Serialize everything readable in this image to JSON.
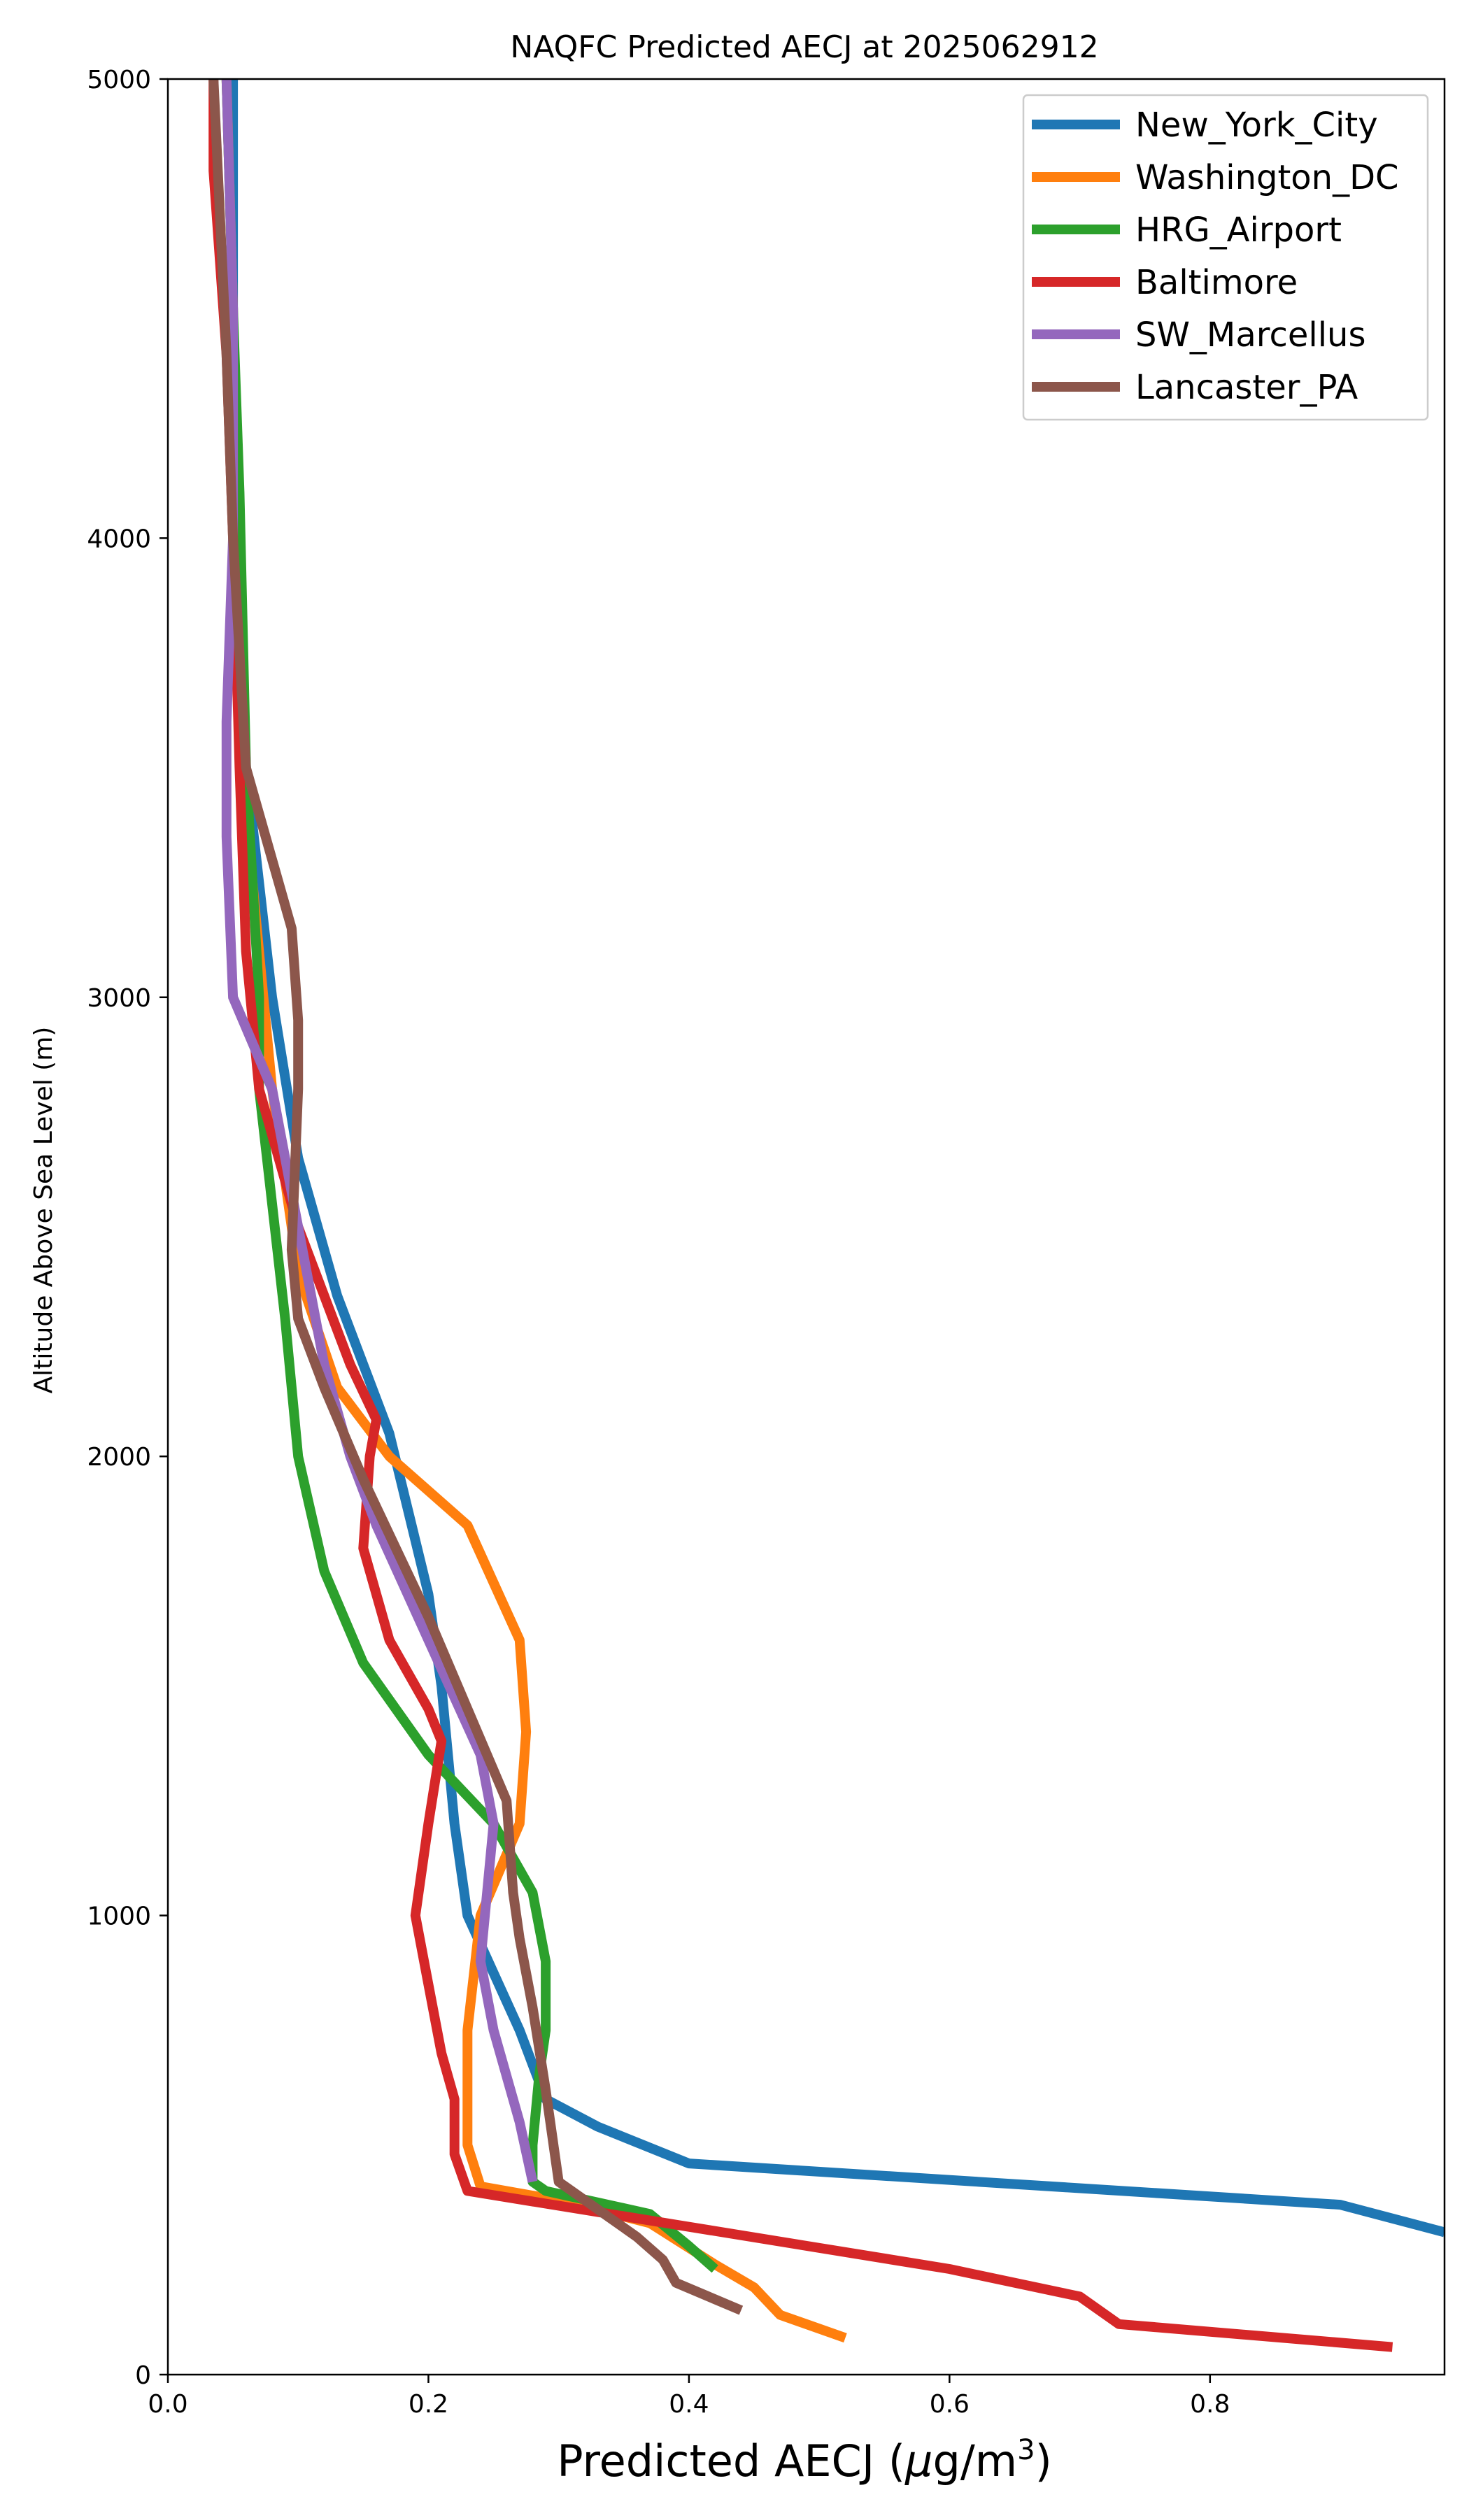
{
  "chart_data": {
    "type": "line",
    "title": "NAQFC Predicted AECJ at 2025062912",
    "xlabel_main": "Predicted AECJ (",
    "xlabel_mu": "μ",
    "xlabel_unit": "g/m",
    "xlabel_sup": "3",
    "xlabel_close": ")",
    "ylabel": "Altitude Above Sea Level (m)",
    "xlim": [
      0.0,
      0.98
    ],
    "ylim": [
      0,
      5000
    ],
    "xticks": [
      0.0,
      0.2,
      0.4,
      0.6,
      0.8
    ],
    "xtick_labels": [
      "0.0",
      "0.2",
      "0.4",
      "0.6",
      "0.8"
    ],
    "yticks": [
      0,
      1000,
      2000,
      3000,
      4000,
      5000
    ],
    "ytick_labels": [
      "0",
      "1000",
      "2000",
      "3000",
      "4000",
      "5000"
    ],
    "legend_position": "top-right",
    "series": [
      {
        "name": "New_York_City",
        "color": "#1f77b4",
        "x": [
          0.05,
          0.05,
          0.05,
          0.06,
          0.08,
          0.1,
          0.13,
          0.17,
          0.2,
          0.21,
          0.22,
          0.23,
          0.27,
          0.29,
          0.33,
          0.4,
          0.9,
          0.98
        ],
        "y": [
          5000,
          4800,
          4200,
          3500,
          3000,
          2650,
          2350,
          2050,
          1700,
          1500,
          1200,
          1000,
          750,
          600,
          540,
          460,
          370,
          310
        ]
      },
      {
        "name": "Washington_DC",
        "color": "#ff7f0e",
        "x": [
          0.045,
          0.05,
          0.05,
          0.06,
          0.08,
          0.09,
          0.1,
          0.13,
          0.17,
          0.23,
          0.27,
          0.275,
          0.27,
          0.24,
          0.23,
          0.23,
          0.24,
          0.3,
          0.37,
          0.42,
          0.45,
          0.47,
          0.52
        ],
        "y": [
          5000,
          4500,
          4000,
          3400,
          2800,
          2600,
          2400,
          2150,
          2000,
          1850,
          1600,
          1400,
          1200,
          1000,
          750,
          500,
          410,
          380,
          330,
          240,
          190,
          130,
          80
        ]
      },
      {
        "name": "HRG_Airport",
        "color": "#2ca02c",
        "x": [
          0.045,
          0.05,
          0.055,
          0.06,
          0.07,
          0.07,
          0.08,
          0.09,
          0.1,
          0.12,
          0.15,
          0.2,
          0.25,
          0.28,
          0.29,
          0.29,
          0.285,
          0.28,
          0.28,
          0.29,
          0.37,
          0.4,
          0.42
        ],
        "y": [
          5000,
          4500,
          4100,
          3500,
          3000,
          2800,
          2550,
          2300,
          2000,
          1750,
          1550,
          1350,
          1200,
          1050,
          900,
          750,
          650,
          500,
          420,
          400,
          350,
          280,
          230
        ]
      },
      {
        "name": "Baltimore",
        "color": "#d62728",
        "x": [
          0.035,
          0.035,
          0.045,
          0.05,
          0.055,
          0.06,
          0.07,
          0.08,
          0.1,
          0.14,
          0.16,
          0.155,
          0.15,
          0.17,
          0.2,
          0.21,
          0.2,
          0.19,
          0.2,
          0.21,
          0.22,
          0.22,
          0.23,
          0.6,
          0.7,
          0.73,
          0.94
        ],
        "y": [
          5000,
          4800,
          4400,
          4000,
          3500,
          3100,
          2800,
          2700,
          2500,
          2200,
          2080,
          2000,
          1800,
          1600,
          1450,
          1380,
          1200,
          1000,
          850,
          700,
          600,
          480,
          400,
          230,
          170,
          110,
          60
        ]
      },
      {
        "name": "SW_Marcellus",
        "color": "#9467bd",
        "x": [
          0.045,
          0.05,
          0.05,
          0.045,
          0.045,
          0.05,
          0.08,
          0.1,
          0.12,
          0.14,
          0.16,
          0.2,
          0.24,
          0.25,
          0.245,
          0.24,
          0.25,
          0.27,
          0.28
        ],
        "y": [
          5000,
          4500,
          4000,
          3600,
          3350,
          3000,
          2800,
          2500,
          2200,
          2000,
          1850,
          1600,
          1350,
          1200,
          1050,
          900,
          750,
          550,
          420
        ]
      },
      {
        "name": "Lancaster_PA",
        "color": "#8c564b",
        "x": [
          0.035,
          0.04,
          0.045,
          0.05,
          0.06,
          0.08,
          0.095,
          0.1,
          0.1,
          0.095,
          0.1,
          0.12,
          0.15,
          0.2,
          0.23,
          0.26,
          0.265,
          0.27,
          0.28,
          0.29,
          0.3,
          0.33,
          0.36,
          0.38,
          0.39,
          0.44
        ],
        "y": [
          5000,
          4700,
          4400,
          4000,
          3500,
          3300,
          3150,
          2950,
          2800,
          2450,
          2300,
          2150,
          1950,
          1650,
          1450,
          1250,
          1050,
          950,
          800,
          620,
          420,
          360,
          300,
          250,
          200,
          140
        ]
      }
    ]
  }
}
